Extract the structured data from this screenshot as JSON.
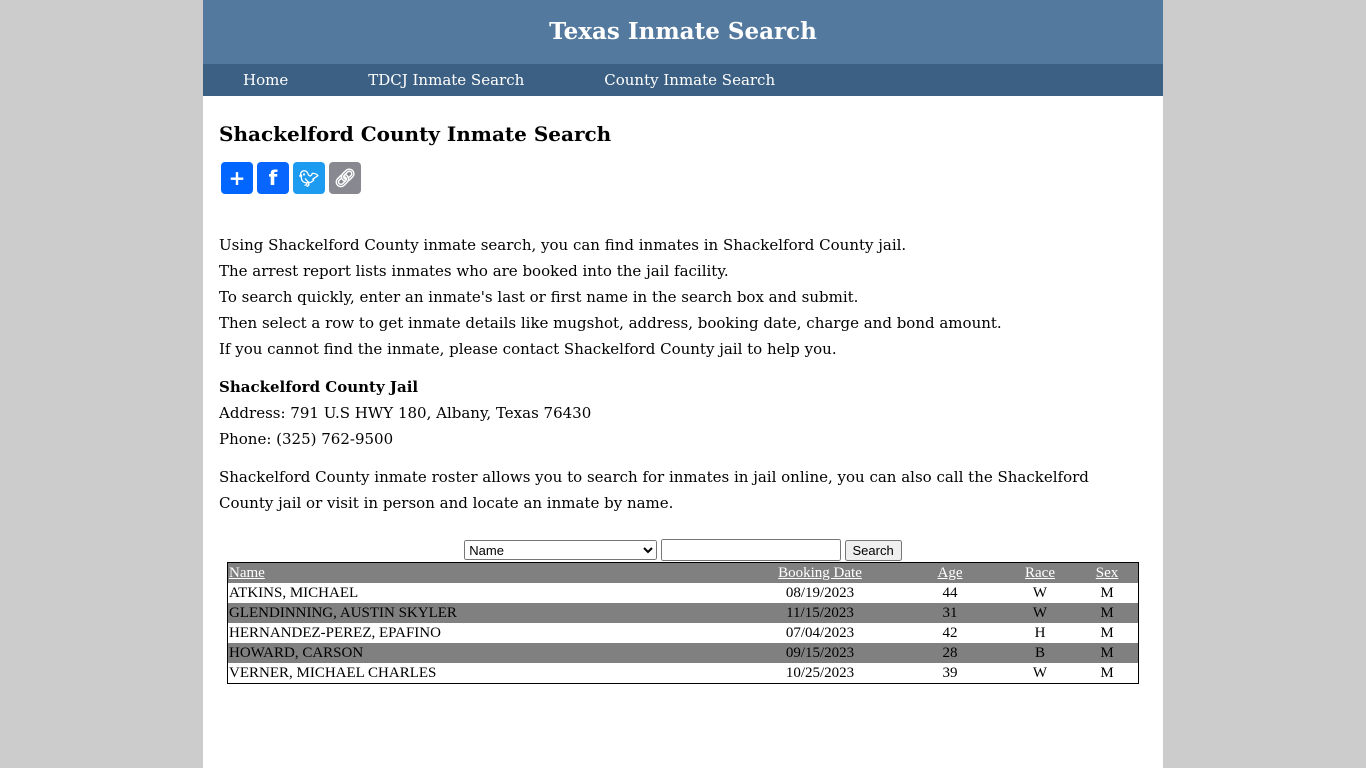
{
  "site_title": "Texas Inmate Search",
  "nav": [
    "Home",
    "TDCJ Inmate Search",
    "County Inmate Search"
  ],
  "page_title": "Shackelford County Inmate Search",
  "share": [
    {
      "icon": "share-plus-icon",
      "color": "#0166ff"
    },
    {
      "icon": "facebook-icon",
      "color": "#0866ff"
    },
    {
      "icon": "twitter-icon",
      "color": "#1d9bf0"
    },
    {
      "icon": "copy-link-icon",
      "color": "#888990"
    }
  ],
  "intro": [
    "Using Shackelford County inmate search, you can find inmates in Shackelford County jail.",
    "The arrest report lists inmates who are booked into the jail facility.",
    "To search quickly, enter an inmate's last or first name in the search box and submit.",
    "Then select a row to get inmate details like mugshot, address, booking date, charge and bond amount.",
    "If you cannot find the inmate, please contact Shackelford County jail to help you."
  ],
  "jail": {
    "name": "Shackelford County Jail",
    "address": "Address: 791 U.S HWY 180, Albany, Texas 76430",
    "phone": "Phone: (325) 762-9500"
  },
  "roster": "Shackelford County inmate roster allows you to search for inmates in jail online, you can also call the Shackelford County jail or visit in person and locate an inmate by name.",
  "search": {
    "select_value": "Name",
    "input_value": "",
    "button": "Search"
  },
  "table": {
    "headers": [
      "Name",
      "Booking Date",
      "Age",
      "Race",
      "Sex"
    ],
    "rows": [
      [
        "ATKINS, MICHAEL",
        "08/19/2023",
        "44",
        "W",
        "M"
      ],
      [
        "GLENDINNING, AUSTIN SKYLER",
        "11/15/2023",
        "31",
        "W",
        "M"
      ],
      [
        "HERNANDEZ-PEREZ, EPAFINO",
        "07/04/2023",
        "42",
        "H",
        "M"
      ],
      [
        "HOWARD, CARSON",
        "09/15/2023",
        "28",
        "B",
        "M"
      ],
      [
        "VERNER, MICHAEL CHARLES",
        "10/25/2023",
        "39",
        "W",
        "M"
      ]
    ]
  }
}
